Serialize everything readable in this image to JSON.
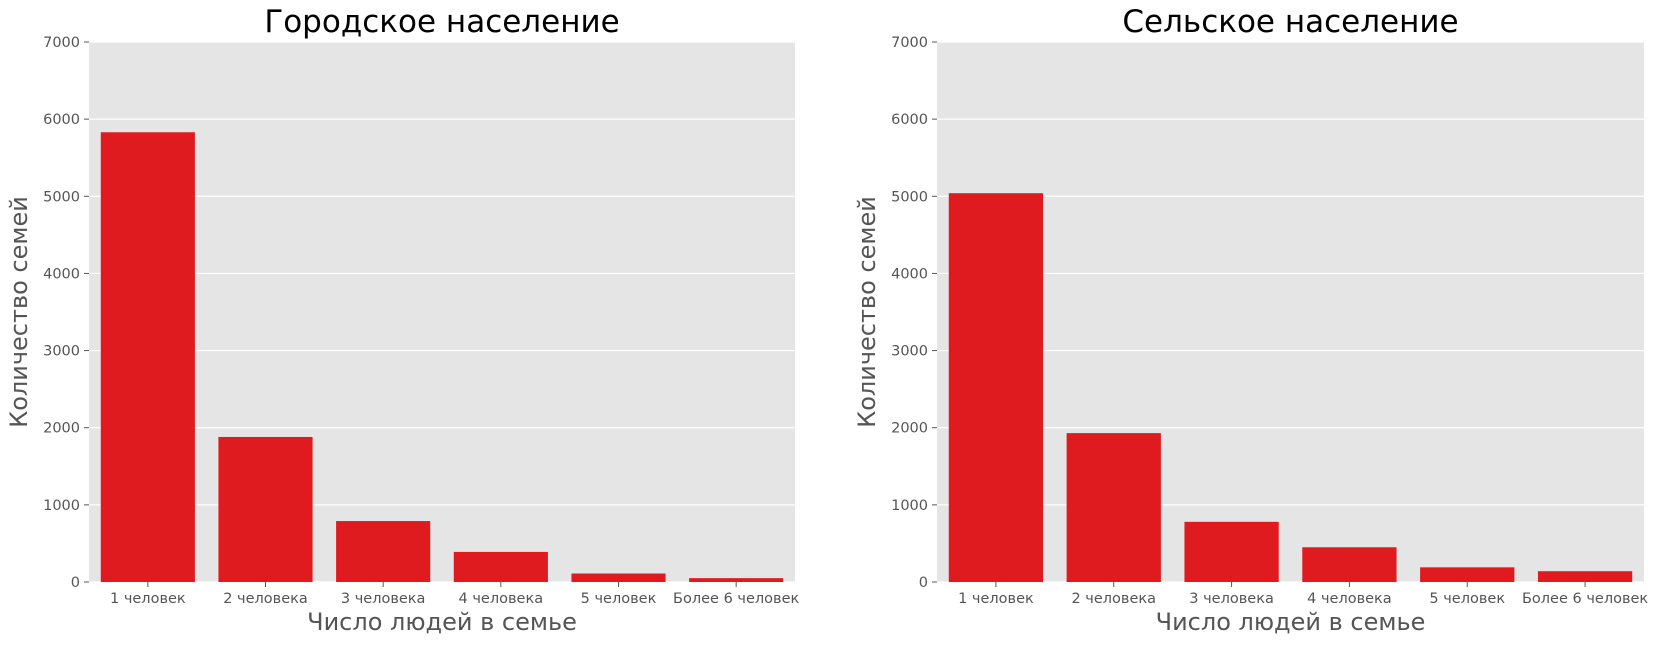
{
  "chart_data": [
    {
      "type": "bar",
      "title": "Городское население",
      "xlabel": "Число людей в семье",
      "ylabel": "Количество семей",
      "categories": [
        "1 человек",
        "2 человека",
        "3 человека",
        "4 человека",
        "5 человек",
        "Более 6 человек"
      ],
      "values": [
        5830,
        1880,
        790,
        390,
        110,
        50
      ],
      "ylim": [
        0,
        7000
      ],
      "yticks": [
        0,
        1000,
        2000,
        3000,
        4000,
        5000,
        6000,
        7000
      ],
      "grid": true,
      "legend": "none"
    },
    {
      "type": "bar",
      "title": "Сельское население",
      "xlabel": "Число людей в семье",
      "ylabel": "Количество семей",
      "categories": [
        "1 человек",
        "2 человека",
        "3 человека",
        "4 человека",
        "5 человек",
        "Более 6 человек"
      ],
      "values": [
        5040,
        1930,
        780,
        450,
        190,
        140
      ],
      "ylim": [
        0,
        7000
      ],
      "yticks": [
        0,
        1000,
        2000,
        3000,
        4000,
        5000,
        6000,
        7000
      ],
      "grid": true,
      "legend": "none"
    }
  ],
  "colors": {
    "bar": "#e01b1f",
    "plot_background": "#e5e5e5",
    "grid": "#ffffff",
    "tick_text": "#555555",
    "label_text": "#555555",
    "title_text": "#000000"
  }
}
